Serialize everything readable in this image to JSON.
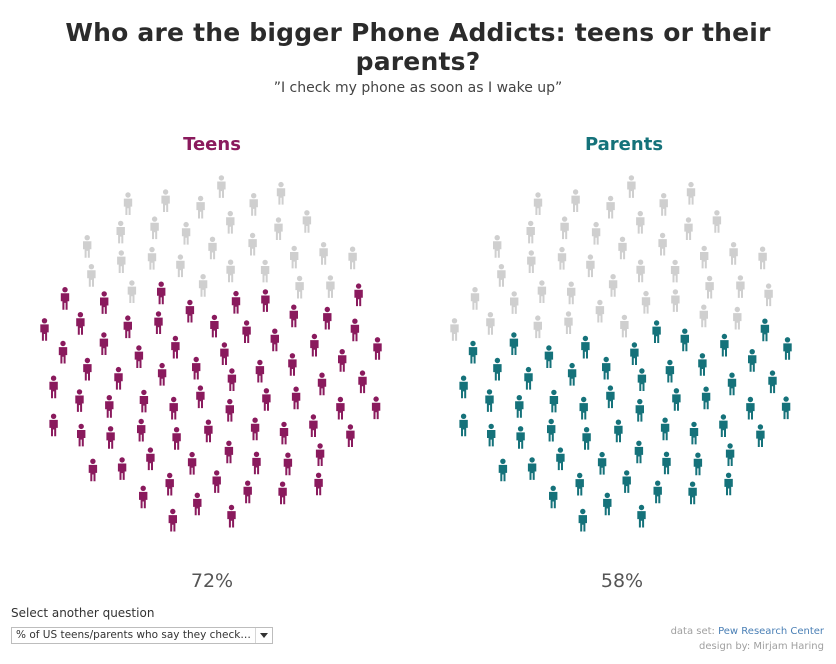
{
  "title": "Who are the bigger Phone Addicts: teens or their parents?",
  "subtitle": "”I check my phone as soon as I wake up”",
  "controls": {
    "select_label": "Select another question",
    "dropdown_value": "% of US teens/parents who say they check p..."
  },
  "credits": {
    "dataset_label": "data set:",
    "dataset_source": "Pew Research Center",
    "design": "design by: Mirjam Haring"
  },
  "colors": {
    "teens": "#8a1a5d",
    "parents": "#15727a",
    "inactive": "#cfcfcf"
  },
  "chart_data": [
    {
      "type": "pictogram",
      "title": "Teens",
      "value": 72,
      "value_label": "72%",
      "total_icons": 100,
      "active_color": "#8a1a5d"
    },
    {
      "type": "pictogram",
      "title": "Parents",
      "value": 58,
      "value_label": "58%",
      "total_icons": 100,
      "active_color": "#15727a"
    }
  ]
}
